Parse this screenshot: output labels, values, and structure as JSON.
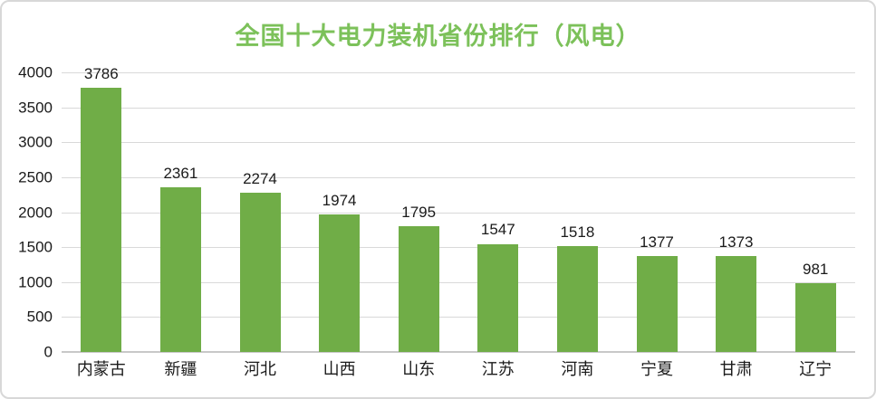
{
  "chart_data": {
    "type": "bar",
    "title": "全国十大电力装机省份排行（风电）",
    "categories": [
      "内蒙古",
      "新疆",
      "河北",
      "山西",
      "山东",
      "江苏",
      "河南",
      "宁夏",
      "甘肃",
      "辽宁"
    ],
    "values": [
      3786,
      2361,
      2274,
      1974,
      1795,
      1547,
      1518,
      1377,
      1373,
      981
    ],
    "xlabel": "",
    "ylabel": "",
    "ylim": [
      0,
      4000
    ],
    "yticks": [
      0,
      500,
      1000,
      1500,
      2000,
      2500,
      3000,
      3500,
      4000
    ],
    "grid": true,
    "legend_position": "none",
    "data_labels": true
  },
  "colors": {
    "bar": "#70ad47",
    "title": "#7cc15a",
    "gridline": "#d9d9d9",
    "axis_line": "#c8c8c8",
    "label_text": "#1a1a1a",
    "background": "#ffffff",
    "card_border": "#d8d8d8"
  }
}
